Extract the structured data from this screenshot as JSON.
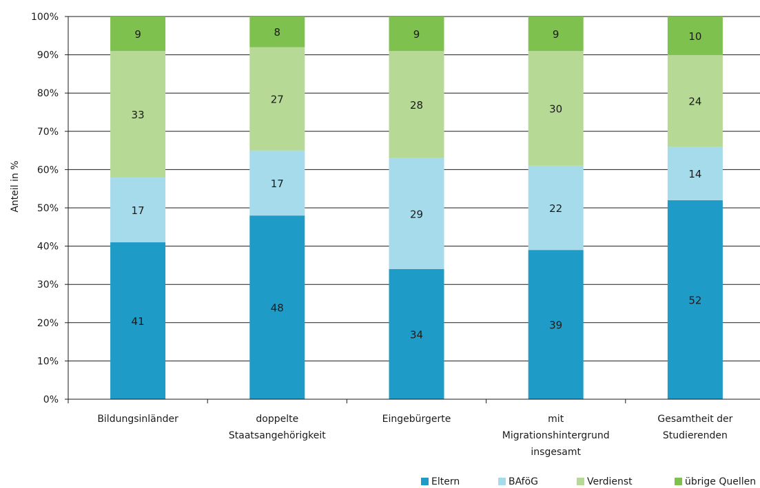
{
  "chart_data": {
    "type": "bar",
    "stacked": true,
    "percent": true,
    "categories": [
      [
        "Bildungsinländer"
      ],
      [
        "doppelte",
        "Staatsangehörigkeit"
      ],
      [
        "Eingebürgerte"
      ],
      [
        "mit",
        "Migrationshintergrund",
        "insgesamt"
      ],
      [
        "Gesamtheit der",
        "Studierenden"
      ]
    ],
    "series": [
      {
        "name": "Eltern",
        "color": "#1f9bc7",
        "values": [
          41,
          48,
          34,
          39,
          52
        ]
      },
      {
        "name": "BAföG",
        "color": "#a6dbeb",
        "values": [
          17,
          17,
          29,
          22,
          14
        ]
      },
      {
        "name": "Verdienst",
        "color": "#b6d996",
        "values": [
          33,
          27,
          28,
          30,
          24
        ]
      },
      {
        "name": "übrige Quellen",
        "color": "#7fc14e",
        "values": [
          9,
          8,
          9,
          9,
          10
        ]
      }
    ],
    "ylabel": "Anteil in %",
    "ylim": [
      0,
      100
    ],
    "yticks": [
      "0%",
      "10%",
      "20%",
      "30%",
      "40%",
      "50%",
      "60%",
      "70%",
      "80%",
      "90%",
      "100%"
    ],
    "grid": true,
    "legend": "bottom-right"
  }
}
